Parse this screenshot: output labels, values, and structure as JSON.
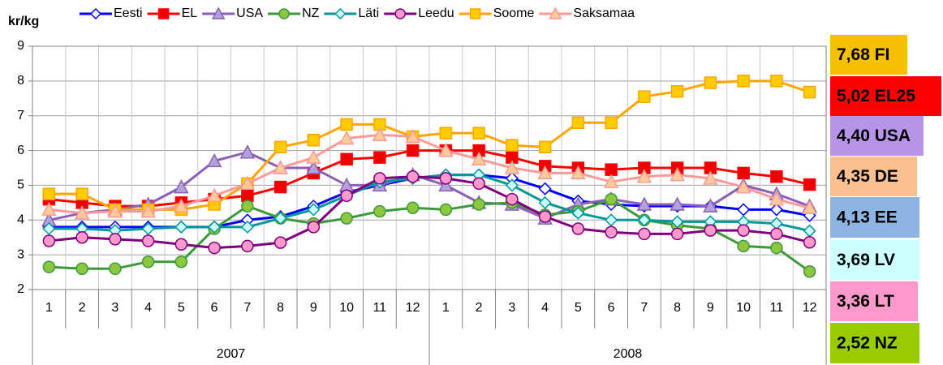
{
  "chart_data": {
    "type": "line",
    "y_label": "kr/kg",
    "categories": [
      "1",
      "2",
      "3",
      "4",
      "5",
      "6",
      "7",
      "8",
      "9",
      "10",
      "11",
      "12",
      "1",
      "2",
      "3",
      "4",
      "5",
      "6",
      "7",
      "8",
      "9",
      "10",
      "11",
      "12"
    ],
    "x_groups": [
      "2007",
      "2008"
    ],
    "ylim": [
      2,
      9
    ],
    "yticks": [
      2,
      3,
      4,
      5,
      6,
      7,
      8,
      9
    ],
    "grid": true,
    "series": [
      {
        "name": "Eesti",
        "color": "#0000ff",
        "marker": "diamond",
        "marker_fill": "#ffffff",
        "values": [
          3.8,
          3.8,
          3.8,
          3.8,
          3.8,
          3.8,
          4.0,
          4.1,
          4.4,
          4.8,
          5.0,
          5.2,
          5.3,
          5.3,
          5.2,
          4.9,
          4.55,
          4.45,
          4.4,
          4.4,
          4.4,
          4.3,
          4.3,
          4.13
        ]
      },
      {
        "name": "EL",
        "color": "#ff0000",
        "marker": "square",
        "marker_fill": "#ee0000",
        "values": [
          4.6,
          4.5,
          4.4,
          4.4,
          4.5,
          4.6,
          4.7,
          4.95,
          5.35,
          5.75,
          5.8,
          6.0,
          6.0,
          6.0,
          5.8,
          5.55,
          5.5,
          5.45,
          5.5,
          5.5,
          5.5,
          5.35,
          5.25,
          5.02
        ]
      },
      {
        "name": "USA",
        "color": "#8c5fb8",
        "marker": "triangle",
        "marker_fill": "#b3a2d7",
        "values": [
          4.0,
          4.2,
          4.3,
          4.45,
          4.95,
          5.7,
          5.95,
          5.5,
          5.5,
          5.0,
          5.0,
          5.3,
          5.0,
          4.5,
          4.45,
          4.05,
          4.45,
          4.6,
          4.45,
          4.45,
          4.4,
          5.0,
          4.75,
          4.4
        ]
      },
      {
        "name": "NZ",
        "color": "#3c9a3c",
        "marker": "circle",
        "marker_fill": "#8dc63f",
        "values": [
          2.65,
          2.6,
          2.6,
          2.8,
          2.8,
          3.75,
          4.4,
          4.05,
          3.9,
          4.05,
          4.25,
          4.35,
          4.3,
          4.45,
          4.5,
          4.15,
          4.25,
          4.6,
          4.0,
          3.85,
          3.75,
          3.25,
          3.2,
          2.52
        ]
      },
      {
        "name": "Läti",
        "color": "#009999",
        "marker": "diamond",
        "marker_fill": "#ccffff",
        "values": [
          3.75,
          3.75,
          3.7,
          3.75,
          3.8,
          3.8,
          3.8,
          4.05,
          4.3,
          4.7,
          5.1,
          5.2,
          5.3,
          5.3,
          5.0,
          4.5,
          4.2,
          4.0,
          4.0,
          3.95,
          3.95,
          3.95,
          3.9,
          3.69
        ]
      },
      {
        "name": "Leedu",
        "color": "#800080",
        "marker": "circle",
        "marker_fill": "#ff99cc",
        "values": [
          3.4,
          3.5,
          3.45,
          3.4,
          3.3,
          3.2,
          3.25,
          3.35,
          3.8,
          4.7,
          5.2,
          5.25,
          5.2,
          5.05,
          4.6,
          4.1,
          3.75,
          3.65,
          3.6,
          3.6,
          3.7,
          3.7,
          3.6,
          3.36
        ]
      },
      {
        "name": "Soome",
        "color": "#ffa500",
        "marker": "square",
        "marker_fill": "#ffcc00",
        "values": [
          4.75,
          4.75,
          4.3,
          4.3,
          4.3,
          4.45,
          5.05,
          6.1,
          6.3,
          6.75,
          6.75,
          6.4,
          6.5,
          6.5,
          6.15,
          6.1,
          6.8,
          6.8,
          7.55,
          7.7,
          7.95,
          8.0,
          8.0,
          7.68
        ]
      },
      {
        "name": "Saksamaa",
        "color": "#ff9999",
        "marker": "triangle",
        "marker_fill": "#ffcc99",
        "values": [
          4.3,
          4.2,
          4.25,
          4.25,
          4.4,
          4.7,
          5.05,
          5.5,
          5.8,
          6.35,
          6.45,
          6.4,
          6.0,
          5.75,
          5.5,
          5.35,
          5.35,
          5.1,
          5.25,
          5.3,
          5.2,
          4.95,
          4.6,
          4.35
        ]
      }
    ],
    "annotations": [
      {
        "text": "7,68 FI",
        "color": "#f5c000"
      },
      {
        "text": "5,02 EL25",
        "color": "#ff0000"
      },
      {
        "text": "4,40 USA",
        "color": "#b794e8"
      },
      {
        "text": "4,35 DE",
        "color": "#fac090"
      },
      {
        "text": "4,13 EE",
        "color": "#8db4e2"
      },
      {
        "text": "3,69 LV",
        "color": "#ccffff"
      },
      {
        "text": "3,36 LT",
        "color": "#ff99cc"
      },
      {
        "text": "2,52 NZ",
        "color": "#99cc00"
      }
    ]
  }
}
